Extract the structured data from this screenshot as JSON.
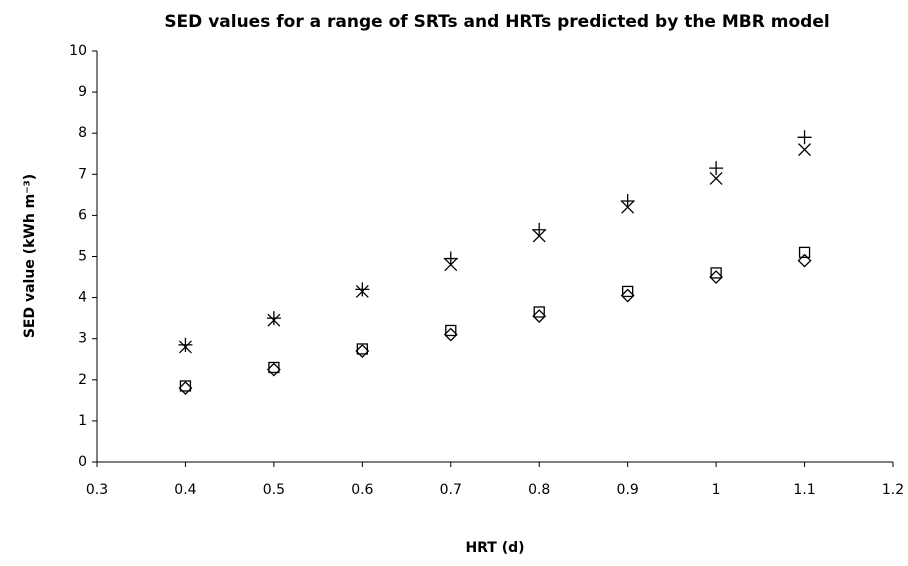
{
  "chart_data": {
    "type": "scatter",
    "title": "SED values for a range of SRTs and HRTs predicted by the MBR model",
    "xlabel": "HRT (d)",
    "ylabel": "SED value (kWh m⁻³)",
    "x": [
      0.4,
      0.5,
      0.6,
      0.7,
      0.8,
      0.9,
      1,
      1.1
    ],
    "series": [
      {
        "marker": "plus",
        "color": "#000000",
        "values": [
          2.85,
          3.5,
          4.2,
          4.95,
          5.65,
          6.35,
          7.15,
          7.9
        ]
      },
      {
        "marker": "x",
        "color": "#000000",
        "values": [
          2.8,
          3.45,
          4.15,
          4.8,
          5.5,
          6.2,
          6.9,
          7.6
        ]
      },
      {
        "marker": "square",
        "color": "#000000",
        "values": [
          1.85,
          2.3,
          2.75,
          3.2,
          3.65,
          4.15,
          4.6,
          5.1
        ]
      },
      {
        "marker": "diamond",
        "color": "#000000",
        "values": [
          1.8,
          2.25,
          2.7,
          3.1,
          3.55,
          4.05,
          4.5,
          4.9
        ]
      }
    ],
    "xlim": [
      0.3,
      1.2
    ],
    "xticks": [
      0.3,
      0.4,
      0.5,
      0.6,
      0.7,
      0.8,
      0.9,
      1,
      1.1,
      1.2
    ],
    "ylim": [
      0,
      10
    ],
    "yticks": [
      0,
      1,
      2,
      3,
      4,
      5,
      6,
      7,
      8,
      9,
      10
    ],
    "grid": false
  }
}
